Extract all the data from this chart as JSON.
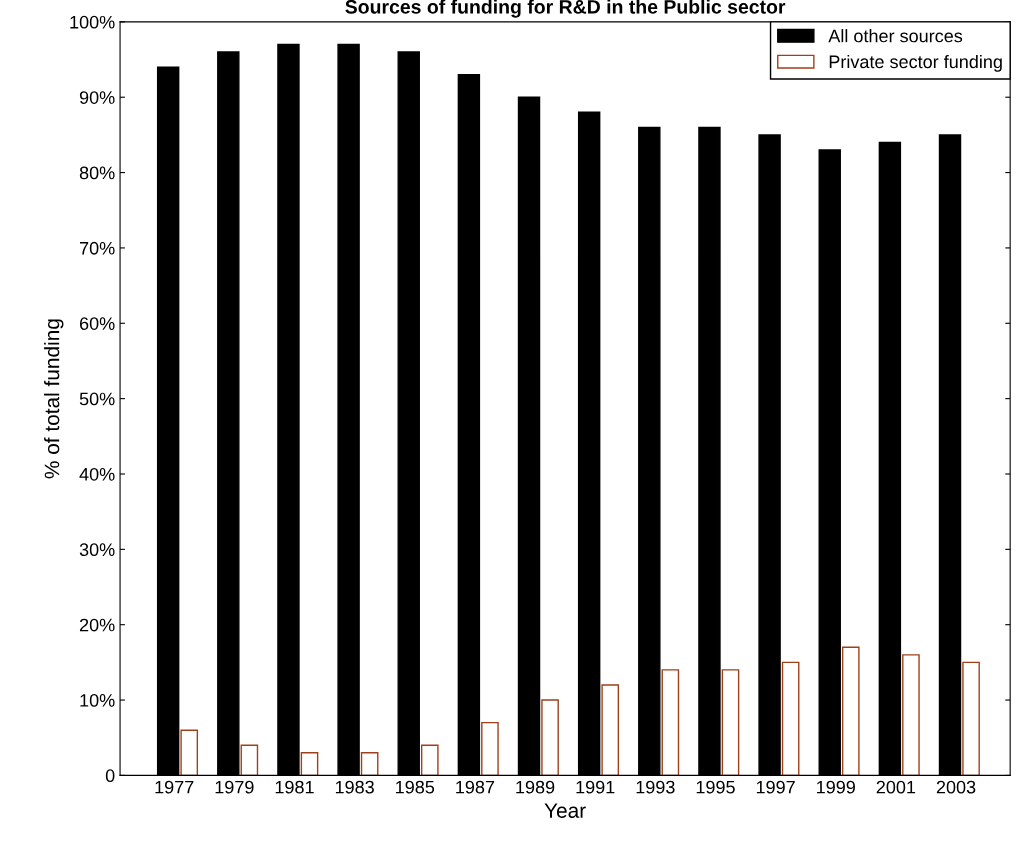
{
  "chart_data": {
    "type": "bar",
    "title": "Sources of funding for R&D in the Public sector",
    "xlabel": "Year",
    "ylabel": "% of total funding",
    "categories": [
      "1977",
      "1979",
      "1981",
      "1983",
      "1985",
      "1987",
      "1989",
      "1991",
      "1993",
      "1995",
      "1997",
      "1999",
      "2001",
      "2003"
    ],
    "series": [
      {
        "name": "All other sources",
        "color": "#000000",
        "values": [
          94,
          96,
          97,
          97,
          96,
          93,
          90,
          88,
          86,
          86,
          85,
          83,
          84,
          85
        ]
      },
      {
        "name": "Private sector funding",
        "color": "#a0401a",
        "values": [
          6,
          4,
          3,
          3,
          4,
          7,
          10,
          12,
          14,
          14,
          15,
          17,
          16,
          15
        ]
      }
    ],
    "ylim": [
      0,
      100
    ],
    "yticks": [
      0,
      {
        "value": 10,
        "label": "10%"
      },
      {
        "value": 20,
        "label": "20%"
      },
      {
        "value": 30,
        "label": "30%"
      },
      {
        "value": 40,
        "label": "40%"
      },
      {
        "value": 50,
        "label": "50%"
      },
      {
        "value": 60,
        "label": "60%"
      },
      {
        "value": 70,
        "label": "70%"
      },
      {
        "value": 80,
        "label": "80%"
      },
      {
        "value": 90,
        "label": "90%"
      },
      {
        "value": 100,
        "label": "100%"
      }
    ],
    "legend": "top right",
    "grid": false
  }
}
